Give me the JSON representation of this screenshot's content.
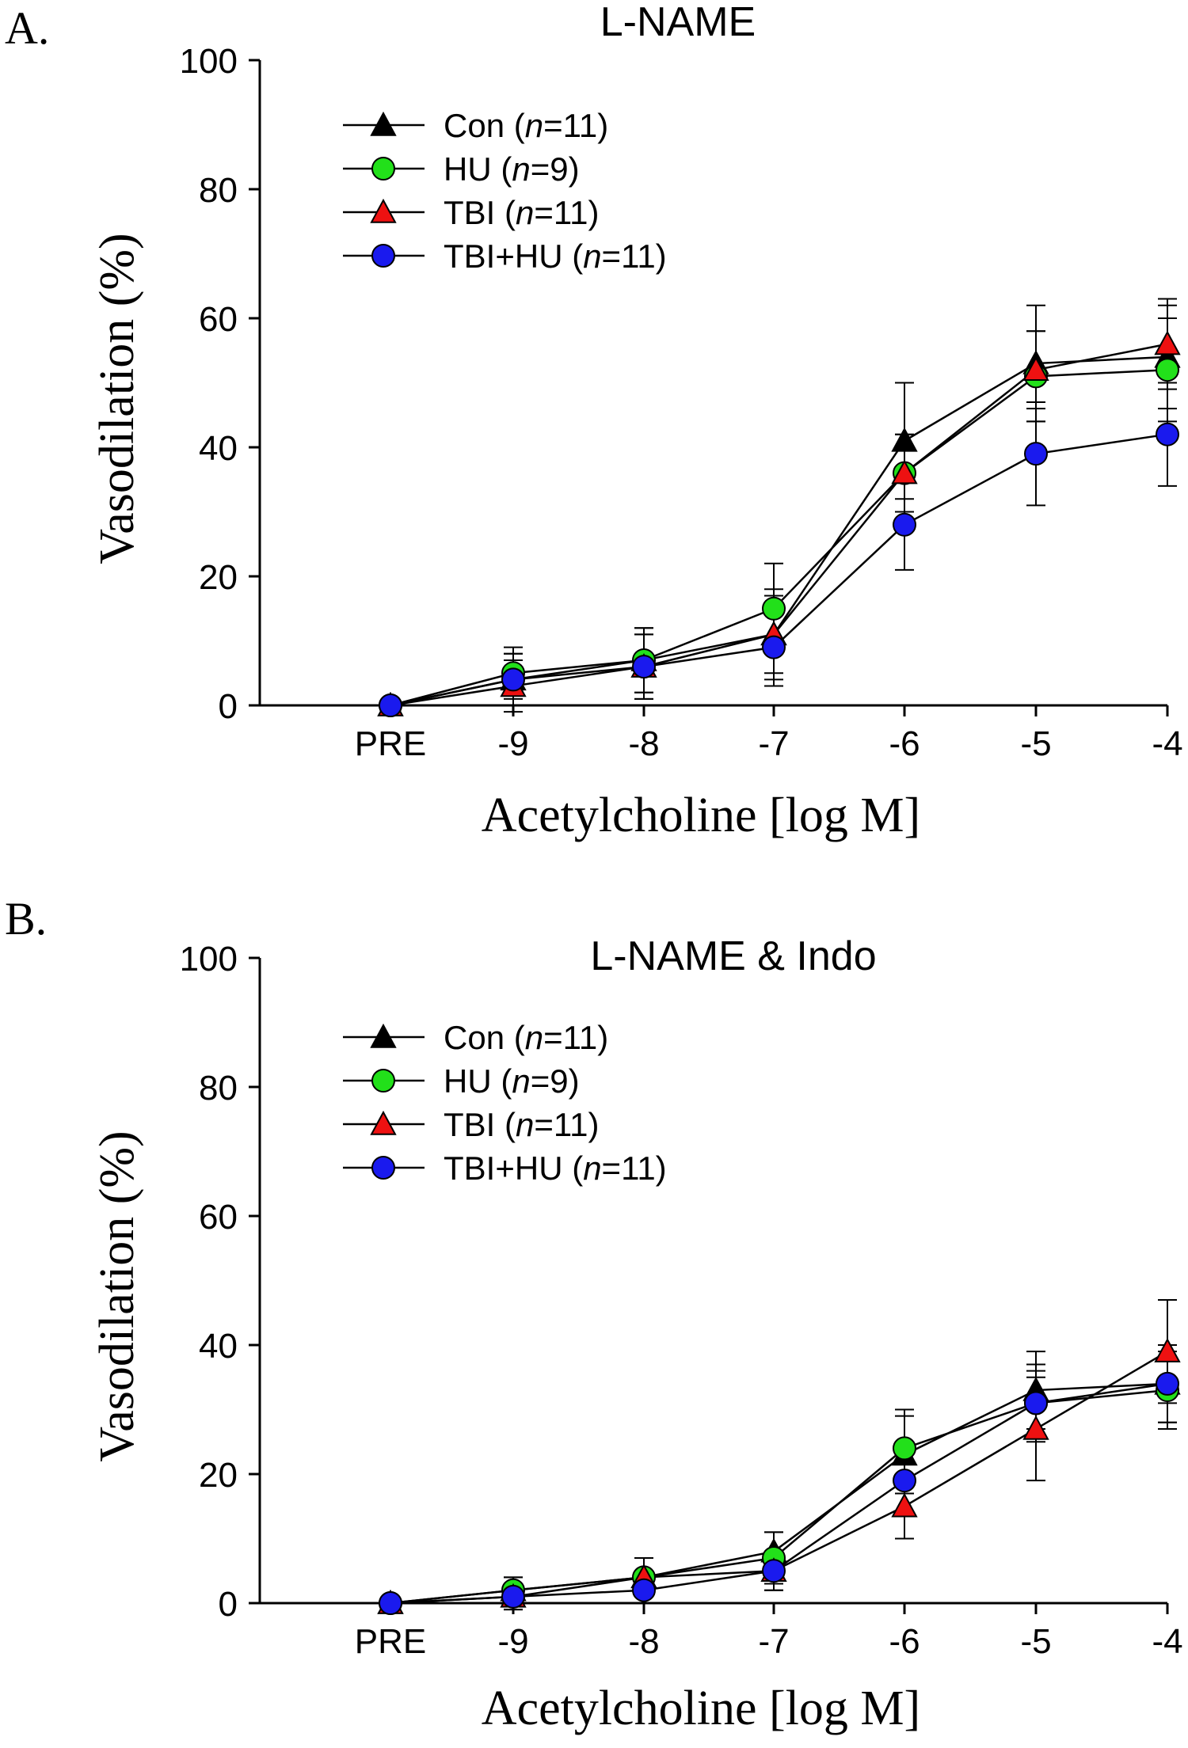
{
  "chart_data": [
    {
      "type": "line",
      "panel_label": "A.",
      "title": "L-NAME",
      "xlabel": "Acetylcholine [log M]",
      "ylabel": "Vasodilation (%)",
      "x_categories": [
        "PRE",
        "-9",
        "-8",
        "-7",
        "-6",
        "-5",
        "-4"
      ],
      "ylim": [
        0,
        100
      ],
      "yticks": [
        "0",
        "20",
        "40",
        "60",
        "80",
        "100"
      ],
      "legend_position": "top-left",
      "grid": false,
      "series": [
        {
          "name_prefix": "Con (",
          "name_italic": "n",
          "name_suffix": "=11)",
          "marker": "triangle",
          "color": "#000000",
          "values": [
            0,
            4,
            7,
            11,
            41,
            53,
            54
          ],
          "errors": [
            0,
            4,
            5,
            7,
            9,
            9,
            8
          ]
        },
        {
          "name_prefix": "HU (",
          "name_italic": "n",
          "name_suffix": "=9)",
          "marker": "circle",
          "color": "#22e01a",
          "values": [
            0,
            5,
            7,
            15,
            36,
            51,
            52
          ],
          "errors": [
            0,
            4,
            5,
            7,
            6,
            7,
            8
          ]
        },
        {
          "name_prefix": "TBI (",
          "name_italic": "n",
          "name_suffix": "=11)",
          "marker": "triangle",
          "color": "#ee1111",
          "values": [
            0,
            3,
            6,
            11,
            36,
            52,
            56
          ],
          "errors": [
            0,
            4,
            5,
            6,
            6,
            6,
            7
          ]
        },
        {
          "name_prefix": "TBI+HU (",
          "name_italic": "n",
          "name_suffix": "=11)",
          "marker": "circle",
          "color": "#1a1aee",
          "values": [
            0,
            4,
            6,
            9,
            28,
            39,
            42
          ],
          "errors": [
            0,
            4,
            5,
            6,
            7,
            8,
            8
          ]
        }
      ]
    },
    {
      "type": "line",
      "panel_label": "B.",
      "title": "L-NAME & Indo",
      "xlabel": "Acetylcholine [log M]",
      "ylabel": "Vasodilation (%)",
      "x_categories": [
        "PRE",
        "-9",
        "-8",
        "-7",
        "-6",
        "-5",
        "-4"
      ],
      "ylim": [
        0,
        100
      ],
      "yticks": [
        "0",
        "20",
        "40",
        "60",
        "80",
        "100"
      ],
      "legend_position": "top-left",
      "grid": false,
      "series": [
        {
          "name_prefix": "Con (",
          "name_italic": "n",
          "name_suffix": "=11)",
          "marker": "triangle",
          "color": "#000000",
          "values": [
            0,
            2,
            4,
            8,
            23,
            33,
            34
          ],
          "errors": [
            0,
            2,
            3,
            3,
            6,
            6,
            6
          ]
        },
        {
          "name_prefix": "HU (",
          "name_italic": "n",
          "name_suffix": "=9)",
          "marker": "circle",
          "color": "#22e01a",
          "values": [
            0,
            2,
            4,
            7,
            24,
            31,
            33
          ],
          "errors": [
            0,
            2,
            3,
            4,
            6,
            6,
            6
          ]
        },
        {
          "name_prefix": "TBI (",
          "name_italic": "n",
          "name_suffix": "=11)",
          "marker": "triangle",
          "color": "#ee1111",
          "values": [
            0,
            1,
            4,
            5,
            15,
            27,
            39
          ],
          "errors": [
            0,
            2,
            3,
            3,
            5,
            8,
            8
          ]
        },
        {
          "name_prefix": "TBI+HU (",
          "name_italic": "n",
          "name_suffix": "=11)",
          "marker": "circle",
          "color": "#1a1aee",
          "values": [
            0,
            1,
            2,
            5,
            19,
            31,
            34
          ],
          "errors": [
            0,
            2,
            2,
            3,
            5,
            5,
            6
          ]
        }
      ]
    }
  ]
}
